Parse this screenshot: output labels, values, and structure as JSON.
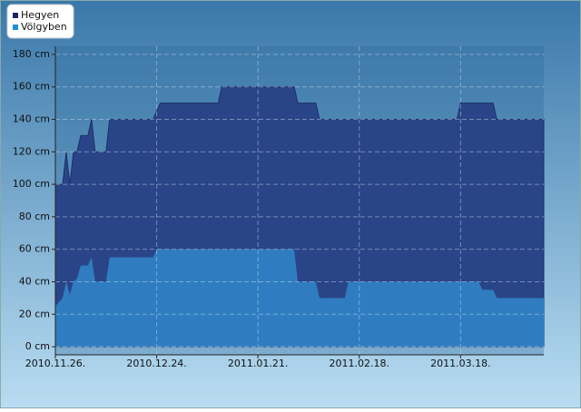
{
  "chart_data": {
    "type": "area",
    "x": [
      "2010-11-26",
      "2010-11-28",
      "2010-11-29",
      "2010-11-30",
      "2010-12-01",
      "2010-12-02",
      "2010-12-03",
      "2010-12-05",
      "2010-12-06",
      "2010-12-07",
      "2010-12-10",
      "2010-12-11",
      "2010-12-23",
      "2010-12-24",
      "2010-12-25",
      "2011-01-10",
      "2011-01-11",
      "2011-01-31",
      "2011-02-01",
      "2011-02-06",
      "2011-02-07",
      "2011-02-14",
      "2011-02-15",
      "2011-03-17",
      "2011-03-18",
      "2011-03-23",
      "2011-03-24",
      "2011-03-27",
      "2011-03-28",
      "2011-04-10"
    ],
    "series": [
      {
        "name": "Hegyen",
        "color": "#2a4488",
        "legend_color": "#1a2668",
        "values": [
          100,
          100,
          120,
          100,
          120,
          120,
          130,
          130,
          140,
          120,
          120,
          140,
          140,
          145,
          150,
          150,
          160,
          160,
          150,
          150,
          140,
          140,
          140,
          140,
          150,
          150,
          150,
          150,
          140,
          140
        ]
      },
      {
        "name": "Völgyben",
        "color": "#2f7dc0",
        "legend_color": "#1e90d4",
        "values": [
          25,
          30,
          40,
          32,
          40,
          42,
          50,
          50,
          55,
          40,
          40,
          55,
          55,
          60,
          60,
          60,
          60,
          60,
          40,
          40,
          30,
          30,
          40,
          40,
          40,
          40,
          35,
          35,
          30,
          30
        ]
      }
    ],
    "xlim": [
      "2010-11-26",
      "2011-04-10"
    ],
    "xticks": [
      {
        "value": "2010-11-26",
        "label": "2010.11.26."
      },
      {
        "value": "2010-12-24",
        "label": "2010.12.24."
      },
      {
        "value": "2011-01-21",
        "label": "2011.01.21."
      },
      {
        "value": "2011-02-18",
        "label": "2011.02.18."
      },
      {
        "value": "2011-03-18",
        "label": "2011.03.18."
      }
    ],
    "ylim": [
      -5,
      185
    ],
    "yticks": [
      {
        "value": 0,
        "label": "0 cm"
      },
      {
        "value": 20,
        "label": "20 cm"
      },
      {
        "value": 40,
        "label": "40 cm"
      },
      {
        "value": 60,
        "label": "60 cm"
      },
      {
        "value": 80,
        "label": "80 cm"
      },
      {
        "value": 100,
        "label": "100 cm"
      },
      {
        "value": 120,
        "label": "120 cm"
      },
      {
        "value": 140,
        "label": "140 cm"
      },
      {
        "value": 160,
        "label": "160 cm"
      },
      {
        "value": 180,
        "label": "180 cm"
      }
    ],
    "grid": true
  }
}
